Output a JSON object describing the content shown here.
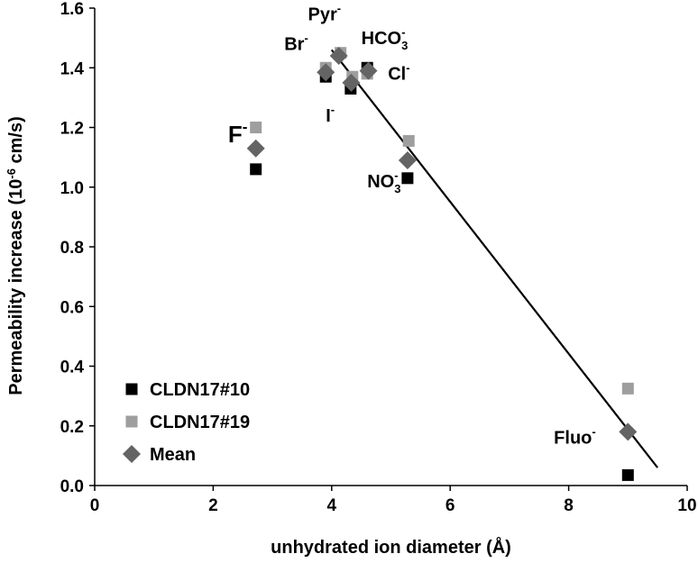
{
  "chart_data": {
    "type": "scatter",
    "xlabel": "unhydrated ion diameter (Å)",
    "ylabel_parts": {
      "before": "Permeability increase (10",
      "exp": "-6",
      "after": " cm/s)"
    },
    "xlim": [
      0,
      10
    ],
    "ylim": [
      0,
      1.6
    ],
    "x_ticks": [
      0,
      2,
      4,
      6,
      8,
      10
    ],
    "x_tick_labels": [
      "0",
      "2",
      "4",
      "6",
      "8",
      "10"
    ],
    "y_ticks": [
      0,
      0.2,
      0.4,
      0.6,
      0.8,
      1.0,
      1.2,
      1.4,
      1.6
    ],
    "y_tick_labels": [
      "0.0",
      "0.2",
      "0.4",
      "0.6",
      "0.8",
      "1.0",
      "1.2",
      "1.4",
      "1.6"
    ],
    "grid": false,
    "legend_position": "bottom-left",
    "series": [
      {
        "name": "CLDN17#10",
        "marker": "square",
        "color": "#000000",
        "points": [
          {
            "x": 2.72,
            "y": 1.06
          },
          {
            "x": 3.9,
            "y": 1.37
          },
          {
            "x": 4.32,
            "y": 1.33
          },
          {
            "x": 4.6,
            "y": 1.4
          },
          {
            "x": 5.28,
            "y": 1.03
          },
          {
            "x": 9.0,
            "y": 0.035
          }
        ]
      },
      {
        "name": "CLDN17#19",
        "marker": "square",
        "color": "#9e9e9e",
        "points": [
          {
            "x": 2.72,
            "y": 1.2
          },
          {
            "x": 3.9,
            "y": 1.4
          },
          {
            "x": 4.15,
            "y": 1.45
          },
          {
            "x": 4.35,
            "y": 1.37
          },
          {
            "x": 4.6,
            "y": 1.38
          },
          {
            "x": 5.3,
            "y": 1.155
          },
          {
            "x": 9.0,
            "y": 0.325
          }
        ]
      },
      {
        "name": "Mean",
        "marker": "diamond",
        "color": "#646464",
        "points": [
          {
            "x": 2.72,
            "y": 1.13
          },
          {
            "x": 3.9,
            "y": 1.385
          },
          {
            "x": 4.12,
            "y": 1.44
          },
          {
            "x": 4.33,
            "y": 1.35
          },
          {
            "x": 4.62,
            "y": 1.39
          },
          {
            "x": 5.28,
            "y": 1.09
          },
          {
            "x": 9.0,
            "y": 0.18
          }
        ]
      }
    ],
    "trendline": {
      "x": [
        4.0,
        9.5
      ],
      "y": [
        1.46,
        0.06
      ],
      "color": "#000000"
    },
    "annotations": [
      {
        "base": "F",
        "sup": "-",
        "x": 2.25,
        "y": 1.15,
        "size": 26
      },
      {
        "base": "Br",
        "sup": "-",
        "x": 3.2,
        "y": 1.46,
        "size": 20
      },
      {
        "base": "Pyr",
        "sup": "-",
        "x": 3.6,
        "y": 1.56,
        "size": 20
      },
      {
        "base": "HCO",
        "sub": "3",
        "sup": "-",
        "x": 4.5,
        "y": 1.48,
        "size": 20
      },
      {
        "base": "Cl",
        "sup": "-",
        "x": 4.95,
        "y": 1.36,
        "size": 20
      },
      {
        "base": "I",
        "sup": "-",
        "x": 3.9,
        "y": 1.22,
        "size": 20
      },
      {
        "base": "NO",
        "sub": "3",
        "sup": "-",
        "x": 4.6,
        "y": 1.0,
        "size": 20
      },
      {
        "base": "Fluo",
        "sup": "-",
        "x": 7.75,
        "y": 0.14,
        "size": 20
      }
    ]
  }
}
